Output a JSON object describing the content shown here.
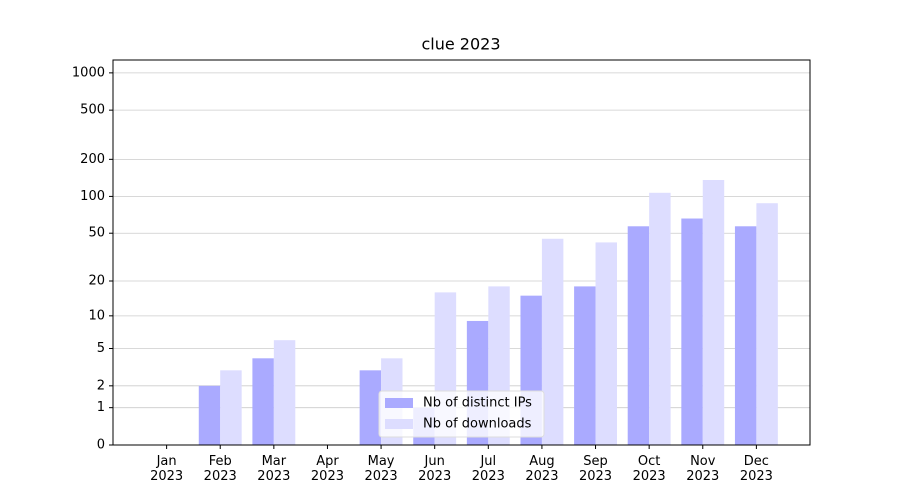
{
  "chart_data": {
    "type": "bar",
    "title": "clue 2023",
    "categories": [
      "Jan\n2023",
      "Feb\n2023",
      "Mar\n2023",
      "Apr\n2023",
      "May\n2023",
      "Jun\n2023",
      "Jul\n2023",
      "Aug\n2023",
      "Sep\n2023",
      "Oct\n2023",
      "Nov\n2023",
      "Dec\n2023"
    ],
    "series": [
      {
        "name": "Nb of distinct IPs",
        "color": "#aaaaff",
        "values": [
          0,
          2,
          4,
          0,
          3,
          1,
          9,
          15,
          18,
          57,
          66,
          57
        ]
      },
      {
        "name": "Nb of downloads",
        "color": "#ddddff",
        "values": [
          0,
          3,
          6,
          0,
          4,
          16,
          18,
          45,
          42,
          107,
          136,
          88
        ]
      }
    ],
    "yscale": "symlog",
    "ylim": [
      0,
      1270
    ],
    "yticks": [
      0,
      1,
      2,
      5,
      10,
      20,
      50,
      100,
      200,
      500,
      1000
    ],
    "grid": true,
    "legend": "lower center"
  }
}
